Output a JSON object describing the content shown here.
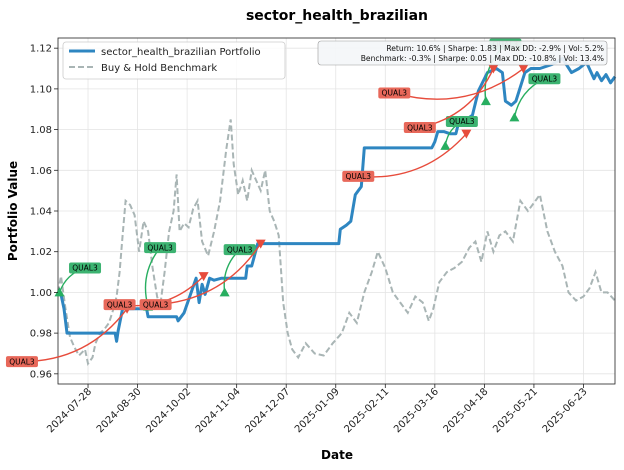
{
  "chart_data": {
    "type": "line",
    "title": "sector_health_brazilian",
    "xlabel": "Date",
    "ylabel": "Portfolio Value",
    "x_start": "2024-07-08",
    "x_end": "2025-07-14",
    "ylim": [
      0.955,
      1.125
    ],
    "grid": true,
    "legend_position": "top-left",
    "x_ticks": [
      "2024-07-28",
      "2024-08-30",
      "2024-10-02",
      "2024-11-04",
      "2024-12-07",
      "2025-01-09",
      "2025-02-11",
      "2025-03-16",
      "2025-04-18",
      "2025-05-21",
      "2025-06-23"
    ],
    "y_ticks": [
      0.96,
      0.98,
      1.0,
      1.02,
      1.04,
      1.06,
      1.08,
      1.1,
      1.12
    ],
    "y_tick_labels": [
      "0.96",
      "0.98",
      "1.00",
      "1.02",
      "1.04",
      "1.06",
      "1.08",
      "1.10",
      "1.12"
    ],
    "stats_lines": [
      "Return: 10.6% | Sharpe: 1.83 | Max DD: -2.9% | Vol: 5.2%",
      "Benchmark: -0.3% | Sharpe: 0.05 | Max DD: -10.8% | Vol: 13.4%"
    ],
    "colors": {
      "portfolio": "#2e86c1",
      "benchmark": "#a9b5b5",
      "buy": "#27ae60",
      "sell": "#e74c3c",
      "buy_label_bg": "#3cb371",
      "sell_label_bg": "#e8685a"
    },
    "series": [
      {
        "name": "sector_health_brazilian Portfolio",
        "style": "solid",
        "points": [
          [
            "2024-07-08",
            1.0
          ],
          [
            "2024-07-10",
            0.999
          ],
          [
            "2024-07-12",
            0.992
          ],
          [
            "2024-07-14",
            0.98
          ],
          [
            "2024-08-05",
            0.98
          ],
          [
            "2024-08-15",
            0.98
          ],
          [
            "2024-08-16",
            0.976
          ],
          [
            "2024-08-17",
            0.981
          ],
          [
            "2024-08-20",
            0.992
          ],
          [
            "2024-09-05",
            0.992
          ],
          [
            "2024-09-06",
            0.988
          ],
          [
            "2024-09-25",
            0.988
          ],
          [
            "2024-09-26",
            0.986
          ],
          [
            "2024-09-30",
            0.99
          ],
          [
            "2024-10-08",
            1.007
          ],
          [
            "2024-10-10",
            0.995
          ],
          [
            "2024-10-12",
            1.004
          ],
          [
            "2024-10-14",
            0.999
          ],
          [
            "2024-10-17",
            1.007
          ],
          [
            "2024-10-20",
            1.006
          ],
          [
            "2024-10-25",
            1.007
          ],
          [
            "2024-11-10",
            1.007
          ],
          [
            "2024-11-11",
            1.013
          ],
          [
            "2024-11-14",
            1.013
          ],
          [
            "2024-11-18",
            1.024
          ],
          [
            "2025-01-11",
            1.024
          ],
          [
            "2025-01-12",
            1.031
          ],
          [
            "2025-01-16",
            1.033
          ],
          [
            "2025-01-19",
            1.035
          ],
          [
            "2025-01-22",
            1.048
          ],
          [
            "2025-01-24",
            1.05
          ],
          [
            "2025-01-26",
            1.052
          ],
          [
            "2025-01-28",
            1.071
          ],
          [
            "2025-03-14",
            1.071
          ],
          [
            "2025-03-16",
            1.074
          ],
          [
            "2025-03-18",
            1.079
          ],
          [
            "2025-03-22",
            1.079
          ],
          [
            "2025-03-26",
            1.078
          ],
          [
            "2025-03-30",
            1.078
          ],
          [
            "2025-04-01",
            1.084
          ],
          [
            "2025-04-06",
            1.085
          ],
          [
            "2025-04-10",
            1.087
          ],
          [
            "2025-04-14",
            1.099
          ],
          [
            "2025-04-20",
            1.108
          ],
          [
            "2025-04-26",
            1.11
          ],
          [
            "2025-04-30",
            1.108
          ],
          [
            "2025-05-02",
            1.094
          ],
          [
            "2025-05-06",
            1.092
          ],
          [
            "2025-05-09",
            1.094
          ],
          [
            "2025-05-12",
            1.101
          ],
          [
            "2025-05-15",
            1.108
          ],
          [
            "2025-05-19",
            1.11
          ],
          [
            "2025-05-25",
            1.11
          ],
          [
            "2025-06-02",
            1.112
          ],
          [
            "2025-06-09",
            1.115
          ],
          [
            "2025-06-15",
            1.108
          ],
          [
            "2025-06-20",
            1.11
          ],
          [
            "2025-06-25",
            1.113
          ],
          [
            "2025-06-30",
            1.105
          ],
          [
            "2025-07-02",
            1.108
          ],
          [
            "2025-07-05",
            1.104
          ],
          [
            "2025-07-08",
            1.107
          ],
          [
            "2025-07-11",
            1.103
          ],
          [
            "2025-07-14",
            1.106
          ]
        ]
      },
      {
        "name": "Buy & Hold Benchmark",
        "style": "dashed",
        "points": [
          [
            "2024-07-08",
            1.0
          ],
          [
            "2024-07-10",
            1.008
          ],
          [
            "2024-07-13",
            0.992
          ],
          [
            "2024-07-16",
            0.978
          ],
          [
            "2024-07-19",
            0.973
          ],
          [
            "2024-07-22",
            0.969
          ],
          [
            "2024-07-26",
            0.972
          ],
          [
            "2024-07-28",
            0.965
          ],
          [
            "2024-07-31",
            0.968
          ],
          [
            "2024-08-02",
            0.975
          ],
          [
            "2024-08-05",
            0.98
          ],
          [
            "2024-08-08",
            0.982
          ],
          [
            "2024-08-11",
            0.985
          ],
          [
            "2024-08-14",
            0.992
          ],
          [
            "2024-08-16",
            0.998
          ],
          [
            "2024-08-18",
            1.01
          ],
          [
            "2024-08-20",
            1.028
          ],
          [
            "2024-08-22",
            1.045
          ],
          [
            "2024-08-25",
            1.043
          ],
          [
            "2024-08-28",
            1.038
          ],
          [
            "2024-08-31",
            1.02
          ],
          [
            "2024-09-03",
            1.035
          ],
          [
            "2024-09-06",
            1.03
          ],
          [
            "2024-09-09",
            1.012
          ],
          [
            "2024-09-12",
            0.998
          ],
          [
            "2024-09-14",
            0.993
          ],
          [
            "2024-09-17",
            1.01
          ],
          [
            "2024-09-20",
            1.03
          ],
          [
            "2024-09-23",
            1.04
          ],
          [
            "2024-09-25",
            1.058
          ],
          [
            "2024-09-27",
            1.03
          ],
          [
            "2024-09-30",
            1.034
          ],
          [
            "2024-10-03",
            1.032
          ],
          [
            "2024-10-06",
            1.041
          ],
          [
            "2024-10-09",
            1.045
          ],
          [
            "2024-10-12",
            1.025
          ],
          [
            "2024-10-16",
            1.018
          ],
          [
            "2024-10-20",
            1.03
          ],
          [
            "2024-10-24",
            1.045
          ],
          [
            "2024-10-28",
            1.07
          ],
          [
            "2024-10-31",
            1.085
          ],
          [
            "2024-11-02",
            1.063
          ],
          [
            "2024-11-05",
            1.048
          ],
          [
            "2024-11-08",
            1.055
          ],
          [
            "2024-11-11",
            1.045
          ],
          [
            "2024-11-14",
            1.06
          ],
          [
            "2024-11-17",
            1.055
          ],
          [
            "2024-11-20",
            1.05
          ],
          [
            "2024-11-23",
            1.06
          ],
          [
            "2024-11-26",
            1.04
          ],
          [
            "2024-11-29",
            1.035
          ],
          [
            "2024-12-02",
            1.028
          ],
          [
            "2024-12-05",
            0.995
          ],
          [
            "2024-12-08",
            0.98
          ],
          [
            "2024-12-11",
            0.972
          ],
          [
            "2024-12-15",
            0.968
          ],
          [
            "2024-12-20",
            0.975
          ],
          [
            "2024-12-26",
            0.97
          ],
          [
            "2025-01-01",
            0.969
          ],
          [
            "2025-01-07",
            0.975
          ],
          [
            "2025-01-13",
            0.98
          ],
          [
            "2025-01-18",
            0.99
          ],
          [
            "2025-01-23",
            0.985
          ],
          [
            "2025-01-28",
            1.0
          ],
          [
            "2025-02-02",
            1.01
          ],
          [
            "2025-02-06",
            1.02
          ],
          [
            "2025-02-11",
            1.012
          ],
          [
            "2025-02-16",
            1.0
          ],
          [
            "2025-02-21",
            0.995
          ],
          [
            "2025-02-26",
            0.99
          ],
          [
            "2025-03-03",
            0.998
          ],
          [
            "2025-03-08",
            0.995
          ],
          [
            "2025-03-12",
            0.986
          ],
          [
            "2025-03-15",
            0.992
          ],
          [
            "2025-03-19",
            1.005
          ],
          [
            "2025-03-24",
            1.01
          ],
          [
            "2025-03-29",
            1.012
          ],
          [
            "2025-04-03",
            1.015
          ],
          [
            "2025-04-08",
            1.022
          ],
          [
            "2025-04-12",
            1.025
          ],
          [
            "2025-04-16",
            1.015
          ],
          [
            "2025-04-20",
            1.03
          ],
          [
            "2025-04-24",
            1.02
          ],
          [
            "2025-04-28",
            1.028
          ],
          [
            "2025-05-02",
            1.03
          ],
          [
            "2025-05-07",
            1.025
          ],
          [
            "2025-05-12",
            1.045
          ],
          [
            "2025-05-17",
            1.04
          ],
          [
            "2025-05-21",
            1.044
          ],
          [
            "2025-05-25",
            1.048
          ],
          [
            "2025-05-30",
            1.03
          ],
          [
            "2025-06-04",
            1.02
          ],
          [
            "2025-06-09",
            1.013
          ],
          [
            "2025-06-13",
            1.0
          ],
          [
            "2025-06-18",
            0.996
          ],
          [
            "2025-06-23",
            0.998
          ],
          [
            "2025-06-27",
            1.002
          ],
          [
            "2025-07-01",
            1.01
          ],
          [
            "2025-07-05",
            1.0
          ],
          [
            "2025-07-09",
            1.0
          ],
          [
            "2025-07-14",
            0.996
          ]
        ]
      }
    ],
    "annotations": [
      {
        "label": "QUAL3",
        "type": "buy",
        "x": "2024-07-09",
        "y": 1.0,
        "label_x": "2024-07-26",
        "label_y": 1.012
      },
      {
        "label": "QUAL3",
        "type": "sell",
        "x": "2024-08-23",
        "y": 0.992,
        "label_x": "2024-06-14",
        "label_y": 0.966
      },
      {
        "label": "QUAL3",
        "type": "buy",
        "x": "2024-09-06",
        "y": 0.993,
        "label_x": "2024-09-14",
        "label_y": 1.022
      },
      {
        "label": "QUAL3",
        "type": "sell",
        "x": "2024-10-13",
        "y": 1.008,
        "label_x": "2024-08-18",
        "label_y": 0.994
      },
      {
        "label": "QUAL3",
        "type": "buy",
        "x": "2024-10-27",
        "y": 1.0,
        "label_x": "2024-11-06",
        "label_y": 1.021
      },
      {
        "label": "QUAL3",
        "type": "sell",
        "x": "2024-11-20",
        "y": 1.024,
        "label_x": "2024-09-11",
        "label_y": 0.994
      },
      {
        "label": "QUAL3",
        "type": "buy",
        "x": "2025-03-23",
        "y": 1.072,
        "label_x": "2025-04-03",
        "label_y": 1.084
      },
      {
        "label": "QUAL3",
        "type": "sell",
        "x": "2025-04-06",
        "y": 1.078,
        "label_x": "2025-01-24",
        "label_y": 1.057
      },
      {
        "label": "QUAL3",
        "type": "buy",
        "x": "2025-04-19",
        "y": 1.094,
        "label_x": "2025-05-02",
        "label_y": 1.122
      },
      {
        "label": "QUAL3",
        "type": "sell",
        "x": "2025-04-24",
        "y": 1.11,
        "label_x": "2025-03-06",
        "label_y": 1.081
      },
      {
        "label": "QUAL3",
        "type": "buy",
        "x": "2025-05-08",
        "y": 1.086,
        "label_x": "2025-05-28",
        "label_y": 1.105
      },
      {
        "label": "QUAL3",
        "type": "sell",
        "x": "2025-05-14",
        "y": 1.11,
        "label_x": "2025-02-17",
        "label_y": 1.098
      }
    ]
  }
}
